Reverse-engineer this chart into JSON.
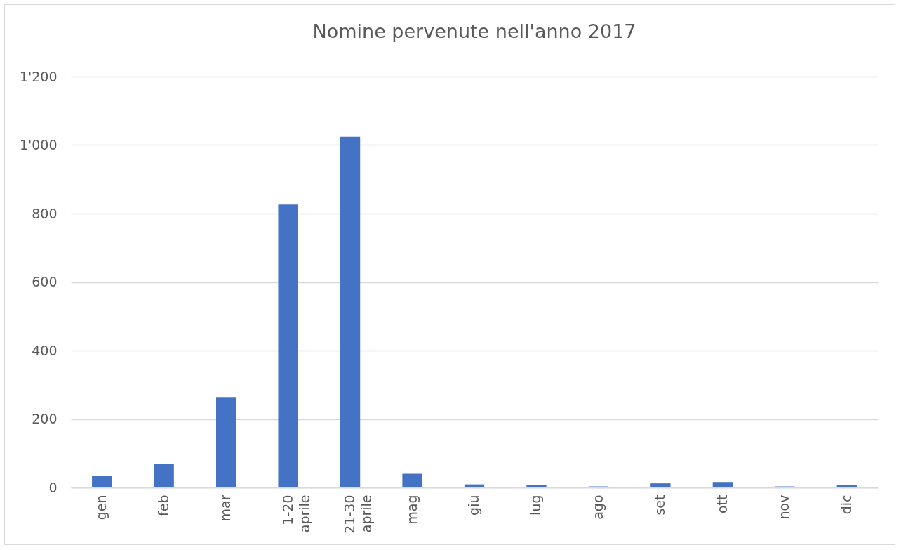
{
  "chart_data": {
    "type": "bar",
    "title": "Nomine pervenute nell'anno 2017",
    "categories": [
      "gen",
      "feb",
      "mar",
      "1-20 aprile",
      "21-30 aprile",
      "mag",
      "giu",
      "lug",
      "ago",
      "set",
      "ott",
      "nov",
      "dic"
    ],
    "values": [
      33,
      70,
      264,
      826,
      1024,
      40,
      9,
      7,
      3,
      12,
      16,
      3,
      8
    ],
    "color": "#4472c4",
    "ylim": [
      0,
      1200
    ],
    "yticks": [
      0,
      200,
      400,
      600,
      800,
      {
        "value": 1000,
        "label": "1'000"
      },
      {
        "value": 1200,
        "label": "1'200"
      }
    ],
    "grid": "y"
  }
}
